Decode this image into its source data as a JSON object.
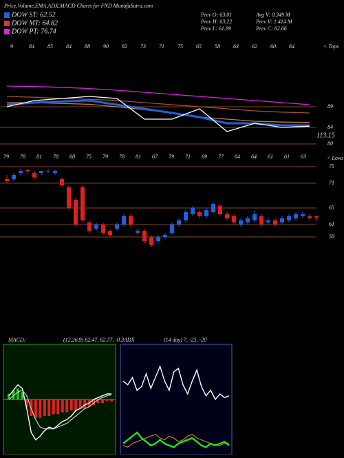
{
  "header": {
    "title": "Price,Volume,EMA,ADX,MACD Charts for FND MunafaSutra.com",
    "legend": [
      {
        "label": "DOW ST: 62.52",
        "color": "#2060e0"
      },
      {
        "label": "DOW MT: 64.82",
        "color": "#e03050"
      },
      {
        "label": "DOW PT: 76.74",
        "color": "#e020e0"
      }
    ],
    "stats": [
      "Prev O: 63.01",
      "Avg V: 0.349 M",
      "Prev H: 63.22",
      "Prev V: 1.414 M",
      "Prev L: 61.89",
      "Prev C: 62.66"
    ]
  },
  "chart_data": [
    {
      "type": "line",
      "x": [
        0,
        4,
        8,
        12,
        16,
        20,
        24,
        28,
        32,
        36,
        40,
        44
      ],
      "ylim": [
        79,
        104
      ],
      "yticks": [
        80,
        84,
        89
      ],
      "grid": true,
      "note_value": "113.15",
      "note_side": "< Tops",
      "date_labels": [
        "9",
        "84",
        "85",
        "84",
        "88",
        "90",
        "82",
        "73",
        "71",
        "75",
        "65",
        "58",
        "63",
        "62",
        "60",
        "64"
      ],
      "series": [
        {
          "color": "#e020e0",
          "values": [
            94,
            93.9,
            93.7,
            93.4,
            93,
            92.5,
            92,
            91.5,
            91,
            90.5,
            90,
            89.5
          ]
        },
        {
          "color": "#a0522d",
          "values": [
            91.5,
            91.3,
            91,
            90.8,
            90.5,
            90,
            89.5,
            89,
            88.5,
            88,
            87.7,
            87.5
          ]
        },
        {
          "color": "#d08020",
          "values": [
            90,
            90,
            89.8,
            89.6,
            89,
            88.3,
            87.5,
            86.5,
            86,
            85.5,
            85.3,
            85.2
          ]
        },
        {
          "color": "#2060e0",
          "values": [
            89.5,
            90,
            90.3,
            90.5,
            89.5,
            88.5,
            87.5,
            86.5,
            85,
            85,
            84.5,
            84.5
          ]
        },
        {
          "color": "#ffffff",
          "values": [
            89,
            90.5,
            91,
            91.5,
            91,
            86,
            86,
            88.5,
            83,
            85,
            84,
            84.3
          ]
        }
      ]
    },
    {
      "type": "candlestick",
      "ylim": [
        53,
        78
      ],
      "yticks": [
        58,
        61,
        65,
        71,
        75
      ],
      "grid": true,
      "note_side": "< Lows",
      "date_labels": [
        "79",
        "78",
        "81",
        "78",
        "68",
        "75",
        "79",
        "78",
        "81",
        "67",
        "79",
        "71",
        "69",
        "77",
        "64",
        "64",
        "61",
        "61",
        "63"
      ],
      "up_color": "#2060e0",
      "down_color": "#e02020",
      "open": [
        72,
        72,
        73.5,
        74.2,
        73.5,
        73.5,
        74,
        73.5,
        72,
        70,
        67,
        70,
        61.5,
        60,
        61,
        59.5,
        60,
        61,
        63,
        59,
        59.5,
        58,
        57,
        58,
        59,
        61,
        62,
        63.5,
        64,
        63,
        64,
        65.5,
        63.5,
        63,
        61,
        61.5,
        62,
        63,
        61.5,
        62,
        61.5,
        62,
        62.5,
        63,
        63,
        63.01
      ],
      "high": [
        73,
        73.5,
        74.5,
        74.5,
        74,
        74,
        74.5,
        74.2,
        72.5,
        70.5,
        67.5,
        70.5,
        62,
        61.5,
        61.5,
        60,
        61.5,
        63.5,
        63.5,
        60,
        60,
        58.5,
        58.5,
        59,
        61.5,
        62.5,
        64.5,
        65.5,
        64.5,
        65,
        66.5,
        66,
        64,
        63.5,
        62.5,
        63,
        64.5,
        63.5,
        62.5,
        62.5,
        63,
        63.5,
        64,
        64,
        63.5,
        63.22
      ],
      "low": [
        71,
        71.5,
        73,
        73.5,
        72,
        73,
        73.5,
        73,
        70,
        64.5,
        60.5,
        61.5,
        59,
        59.5,
        58.5,
        58,
        59.5,
        60.5,
        60.5,
        58.5,
        56.5,
        55.5,
        56.5,
        57.5,
        58.5,
        60.5,
        61.5,
        63,
        62.5,
        62.5,
        63.5,
        63,
        62,
        61,
        60.5,
        61,
        61.5,
        60.5,
        61,
        60.5,
        61,
        61.5,
        62,
        62.5,
        62,
        61.89
      ],
      "close": [
        71.5,
        73,
        74,
        74,
        72.5,
        74,
        74,
        74,
        70.5,
        65,
        61,
        62,
        59.5,
        61,
        59,
        58.5,
        61,
        63,
        61,
        59.5,
        57,
        56,
        58,
        58.5,
        61,
        62,
        64,
        65,
        63,
        64.5,
        66,
        63.5,
        62.5,
        61.5,
        62,
        62.5,
        63.5,
        61,
        62,
        61,
        62.5,
        63,
        63.5,
        63.5,
        62.5,
        62.66
      ]
    },
    {
      "type": "macd",
      "title": "MACD:",
      "params": "(12,26,9) 62.47, 62.77, -0.3",
      "ylim": [
        -3,
        3
      ],
      "macd": [
        0.2,
        0.5,
        0.8,
        0.6,
        -0.5,
        -1.8,
        -2.2,
        -2,
        -1.7,
        -1.5,
        -1.6,
        -1.4,
        -1.2,
        -1.1,
        -0.9,
        -0.6,
        -0.5,
        -0.3,
        -0.2,
        0,
        0.1,
        0.2,
        0.3,
        0.3
      ],
      "signal": [
        0,
        0.2,
        0.4,
        0.5,
        0.2,
        -0.5,
        -1.1,
        -1.5,
        -1.6,
        -1.6,
        -1.6,
        -1.5,
        -1.4,
        -1.3,
        -1.1,
        -0.9,
        -0.7,
        -0.5,
        -0.4,
        -0.2,
        0,
        0.1,
        0.2,
        0.25
      ],
      "histogram": [
        0.3,
        0.5,
        0.6,
        0.4,
        -0.4,
        -0.9,
        -1,
        -1,
        -0.9,
        -0.9,
        -0.8,
        -0.8,
        -0.7,
        -0.7,
        -0.6,
        -0.6,
        -0.5,
        -0.5,
        -0.4,
        -0.3,
        -0.2,
        -0.2,
        -0.1,
        -0.1
      ]
    },
    {
      "type": "adx",
      "title": "ADX",
      "params": "(14 day) 7, -25, -20",
      "ylim": [
        0,
        60
      ],
      "adx": [
        40,
        38,
        42,
        35,
        37,
        44,
        36,
        42,
        48,
        40,
        35,
        45,
        47,
        38,
        33,
        40,
        46,
        37,
        32,
        35,
        30,
        33,
        31,
        32
      ],
      "plus_di": [
        6,
        8,
        10,
        12,
        9,
        7,
        5,
        6,
        8,
        6,
        5,
        4,
        6,
        7,
        8,
        9,
        7,
        5,
        4,
        6,
        5,
        6,
        7,
        5
      ],
      "minus_di": [
        5,
        4,
        6,
        7,
        8,
        9,
        10,
        11,
        9,
        8,
        10,
        9,
        7,
        8,
        10,
        11,
        9,
        8,
        7,
        6,
        5,
        5,
        6,
        6
      ]
    }
  ]
}
